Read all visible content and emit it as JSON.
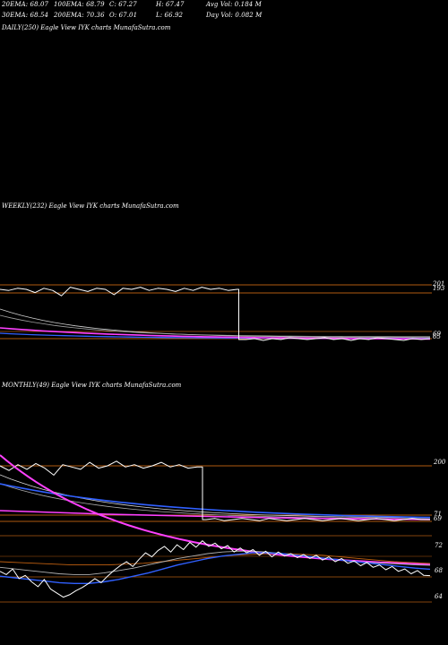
{
  "header": {
    "row1": [
      "20EMA: 68.07",
      "100EMA: 68.79",
      "C: 67.27",
      "H: 67.47",
      "Avg Vol: 0.184  M"
    ],
    "row2": [
      "30EMA: 68.54",
      "200EMA: 70.36",
      "O: 67.01",
      "L: 66.92",
      "Day Vol: 0.082  M"
    ]
  },
  "panels": {
    "daily": "DAILY(250) Eagle   View  IYK charts MunafaSutra.com",
    "weekly": "WEEKLY(232) Eagle   View  IYK charts MunafaSutra.com",
    "monthly": "MONTHLY(49) Eagle   View  IYK charts MunafaSutra.com"
  },
  "colors": {
    "background": "#000000",
    "price": "#ffffff",
    "ema_short": "#3060ff",
    "ema_long": "#ff40ff",
    "level_line": "#b05a10"
  },
  "chart_data": [
    {
      "type": "line",
      "title": "WEEKLY(232) Eagle   View  IYK charts MunafaSutra.com",
      "y_ticks": [
        "201",
        "193",
        "69",
        "65"
      ],
      "series": [
        {
          "values": [
            193,
            192,
            194,
            193,
            190,
            194,
            192,
            187,
            195,
            193,
            191,
            194,
            193,
            188,
            194,
            193,
            195,
            192,
            194,
            193,
            191,
            194,
            192,
            195,
            193,
            194,
            192,
            193,
            65,
            66,
            64,
            66,
            65,
            67,
            66,
            65,
            66,
            67,
            65,
            66,
            64,
            66,
            65,
            67,
            66,
            65,
            64,
            66,
            65,
            66
          ]
        }
      ]
    },
    {
      "type": "line",
      "title": "MONTHLY(49) Eagle   View  IYK charts MunafaSutra.com",
      "y_ticks": [
        "200",
        "71",
        "69"
      ],
      "series": [
        {
          "values": [
            200,
            196,
            201,
            197,
            202,
            198,
            192,
            201,
            199,
            197,
            203,
            198,
            200,
            204,
            199,
            201,
            198,
            200,
            203,
            199,
            201,
            198,
            199,
            69,
            70,
            68,
            69,
            70,
            69,
            68,
            70,
            69,
            68,
            69,
            70,
            69,
            68,
            69,
            70,
            69,
            68,
            69,
            70,
            69,
            68,
            69,
            70,
            69,
            69
          ]
        }
      ]
    },
    {
      "type": "line",
      "title": "DAILY(250) Eagle   View  IYK charts MunafaSutra.com",
      "y_ticks": [
        "72",
        "68",
        "64"
      ],
      "ylim": [
        63,
        75
      ],
      "series": [
        {
          "values": [
            67.8,
            67.4,
            68.1,
            66.9,
            67.3,
            66.5,
            65.9,
            66.8,
            65.6,
            65.1,
            64.6,
            64.9,
            65.4,
            65.8,
            66.3,
            66.9,
            66.4,
            67.2,
            67.9,
            68.5,
            69.0,
            68.4,
            69.3,
            70.1,
            69.6,
            70.4,
            70.9,
            70.2,
            71.1,
            70.5,
            71.4,
            70.8,
            71.6,
            70.9,
            71.3,
            70.6,
            71.0,
            70.2,
            70.7,
            70.1,
            70.5,
            69.8,
            70.3,
            69.6,
            70.2,
            69.7,
            70.0,
            69.5,
            69.9,
            69.4,
            69.8,
            69.2,
            69.6,
            69.0,
            69.4,
            68.8,
            69.1,
            68.5,
            68.9,
            68.3,
            68.6,
            68.0,
            68.4,
            67.8,
            68.1,
            67.5,
            67.9,
            67.3,
            67.27
          ]
        },
        {
          "values": [
            67.2,
            67.0,
            66.8,
            66.6,
            66.4,
            66.3,
            66.3,
            66.5,
            66.8,
            67.2,
            67.6,
            68.1,
            68.6,
            69.0,
            69.4,
            69.7,
            69.9,
            70.1,
            70.1,
            70.0,
            69.8,
            69.6,
            69.4,
            69.2,
            69.0,
            68.8,
            68.6,
            68.4,
            68.2,
            68.07
          ]
        },
        {
          "values": [
            68.3,
            68.1,
            67.9,
            67.7,
            67.5,
            67.4,
            67.4,
            67.6,
            67.9,
            68.2,
            68.6,
            69.0,
            69.4,
            69.7,
            70.0,
            70.2,
            70.3,
            70.3,
            70.2,
            70.0,
            69.8,
            69.6,
            69.4,
            69.2,
            69.0,
            68.9,
            68.8,
            68.7,
            68.6,
            68.54
          ]
        },
        {
          "values": [
            69.0,
            68.9,
            68.8,
            68.7,
            68.6,
            68.6,
            68.6,
            68.7,
            68.8,
            69.0,
            69.2,
            69.4,
            69.6,
            69.8,
            69.9,
            70.0,
            70.0,
            69.9,
            69.8,
            69.6,
            69.4,
            69.2,
            69.0,
            68.9,
            68.79
          ]
        },
        {
          "values": [
            75.0,
            74.2,
            73.5,
            72.9,
            72.4,
            72.0,
            71.7,
            71.5,
            71.3,
            71.1,
            70.9,
            70.8,
            70.7,
            70.6,
            70.5,
            70.45,
            70.4,
            70.38,
            70.36
          ]
        }
      ]
    }
  ]
}
